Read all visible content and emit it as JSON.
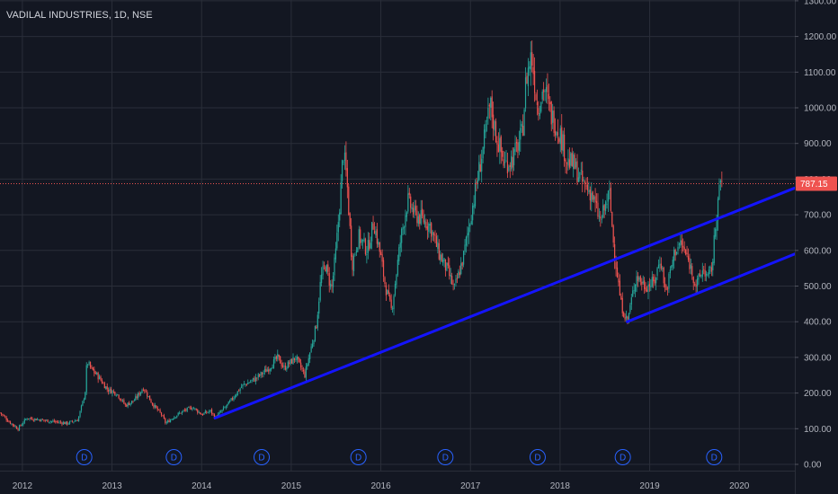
{
  "colors": {
    "background": "#131722",
    "grid": "#2a2e39",
    "axis_text": "#b2b5be",
    "up_candle": "#26a69a",
    "down_candle": "#ef5350",
    "trendline": "#1414ff",
    "last_price_line": "#ef5350",
    "dividend_marker": "#2962ff"
  },
  "chart_data": {
    "type": "candlestick",
    "title": "VADILAL INDUSTRIES, 1D, NSE",
    "interval": "1D",
    "exchange": "NSE",
    "xlim": [
      2011.75,
      2020.62
    ],
    "ylim": [
      0,
      1300
    ],
    "grid": true,
    "y_axis_position": "right",
    "y_ticks": [
      "1300.00",
      "1200.00",
      "1100.00",
      "1000.00",
      "900.00",
      "800.00",
      "700.00",
      "600.00",
      "500.00",
      "400.00",
      "300.00",
      "200.00",
      "100.00",
      "0.00"
    ],
    "y_tick_values": [
      1300,
      1200,
      1100,
      1000,
      900,
      800,
      700,
      600,
      500,
      400,
      300,
      200,
      100,
      0
    ],
    "x_ticks": [
      "2012",
      "2013",
      "2014",
      "2015",
      "2016",
      "2017",
      "2018",
      "2019",
      "2020"
    ],
    "x_tick_values": [
      2012,
      2013,
      2014,
      2015,
      2016,
      2017,
      2018,
      2019,
      2020
    ],
    "last_price": 787.15,
    "last_price_label": "787.15",
    "price_series": [
      [
        2011.75,
        145
      ],
      [
        2011.85,
        120
      ],
      [
        2011.95,
        100
      ],
      [
        2012.05,
        130
      ],
      [
        2012.2,
        125
      ],
      [
        2012.35,
        120
      ],
      [
        2012.5,
        115
      ],
      [
        2012.62,
        125
      ],
      [
        2012.7,
        200
      ],
      [
        2012.72,
        290
      ],
      [
        2012.76,
        270
      ],
      [
        2012.85,
        245
      ],
      [
        2012.95,
        210
      ],
      [
        2013.05,
        200
      ],
      [
        2013.15,
        165
      ],
      [
        2013.25,
        180
      ],
      [
        2013.35,
        215
      ],
      [
        2013.45,
        170
      ],
      [
        2013.55,
        140
      ],
      [
        2013.6,
        115
      ],
      [
        2013.7,
        135
      ],
      [
        2013.8,
        150
      ],
      [
        2013.9,
        160
      ],
      [
        2014.0,
        140
      ],
      [
        2014.1,
        150
      ],
      [
        2014.15,
        130
      ],
      [
        2014.3,
        170
      ],
      [
        2014.45,
        220
      ],
      [
        2014.6,
        240
      ],
      [
        2014.75,
        270
      ],
      [
        2014.85,
        300
      ],
      [
        2014.92,
        270
      ],
      [
        2015.05,
        300
      ],
      [
        2015.15,
        250
      ],
      [
        2015.28,
        390
      ],
      [
        2015.33,
        520
      ],
      [
        2015.38,
        560
      ],
      [
        2015.45,
        490
      ],
      [
        2015.5,
        600
      ],
      [
        2015.55,
        760
      ],
      [
        2015.58,
        880
      ],
      [
        2015.62,
        800
      ],
      [
        2015.68,
        560
      ],
      [
        2015.75,
        640
      ],
      [
        2015.85,
        600
      ],
      [
        2015.92,
        680
      ],
      [
        2016.0,
        580
      ],
      [
        2016.05,
        500
      ],
      [
        2016.12,
        430
      ],
      [
        2016.22,
        630
      ],
      [
        2016.3,
        740
      ],
      [
        2016.38,
        700
      ],
      [
        2016.45,
        690
      ],
      [
        2016.55,
        670
      ],
      [
        2016.65,
        590
      ],
      [
        2016.75,
        540
      ],
      [
        2016.82,
        490
      ],
      [
        2016.92,
        580
      ],
      [
        2017.02,
        720
      ],
      [
        2017.15,
        900
      ],
      [
        2017.22,
        1010
      ],
      [
        2017.28,
        930
      ],
      [
        2017.38,
        840
      ],
      [
        2017.48,
        860
      ],
      [
        2017.58,
        930
      ],
      [
        2017.62,
        1080
      ],
      [
        2017.68,
        1150
      ],
      [
        2017.75,
        1000
      ],
      [
        2017.82,
        1060
      ],
      [
        2017.9,
        980
      ],
      [
        2018.0,
        930
      ],
      [
        2018.08,
        850
      ],
      [
        2018.15,
        840
      ],
      [
        2018.25,
        790
      ],
      [
        2018.35,
        760
      ],
      [
        2018.45,
        680
      ],
      [
        2018.55,
        760
      ],
      [
        2018.6,
        610
      ],
      [
        2018.68,
        450
      ],
      [
        2018.75,
        400
      ],
      [
        2018.85,
        530
      ],
      [
        2018.95,
        500
      ],
      [
        2019.05,
        510
      ],
      [
        2019.12,
        580
      ],
      [
        2019.18,
        480
      ],
      [
        2019.28,
        600
      ],
      [
        2019.35,
        620
      ],
      [
        2019.45,
        560
      ],
      [
        2019.52,
        500
      ],
      [
        2019.6,
        550
      ],
      [
        2019.65,
        520
      ],
      [
        2019.7,
        560
      ],
      [
        2019.75,
        720
      ],
      [
        2019.8,
        800
      ],
      [
        2019.82,
        787.15
      ]
    ],
    "trendlines": [
      {
        "from": [
          2014.15,
          130
        ],
        "to": [
          2020.62,
          775
        ]
      },
      {
        "from": [
          2018.75,
          400
        ],
        "to": [
          2020.62,
          590
        ]
      }
    ],
    "dividend_markers": {
      "label": "D",
      "x": [
        2012.69,
        2013.69,
        2014.67,
        2015.75,
        2016.72,
        2017.75,
        2018.7,
        2019.72
      ]
    }
  }
}
